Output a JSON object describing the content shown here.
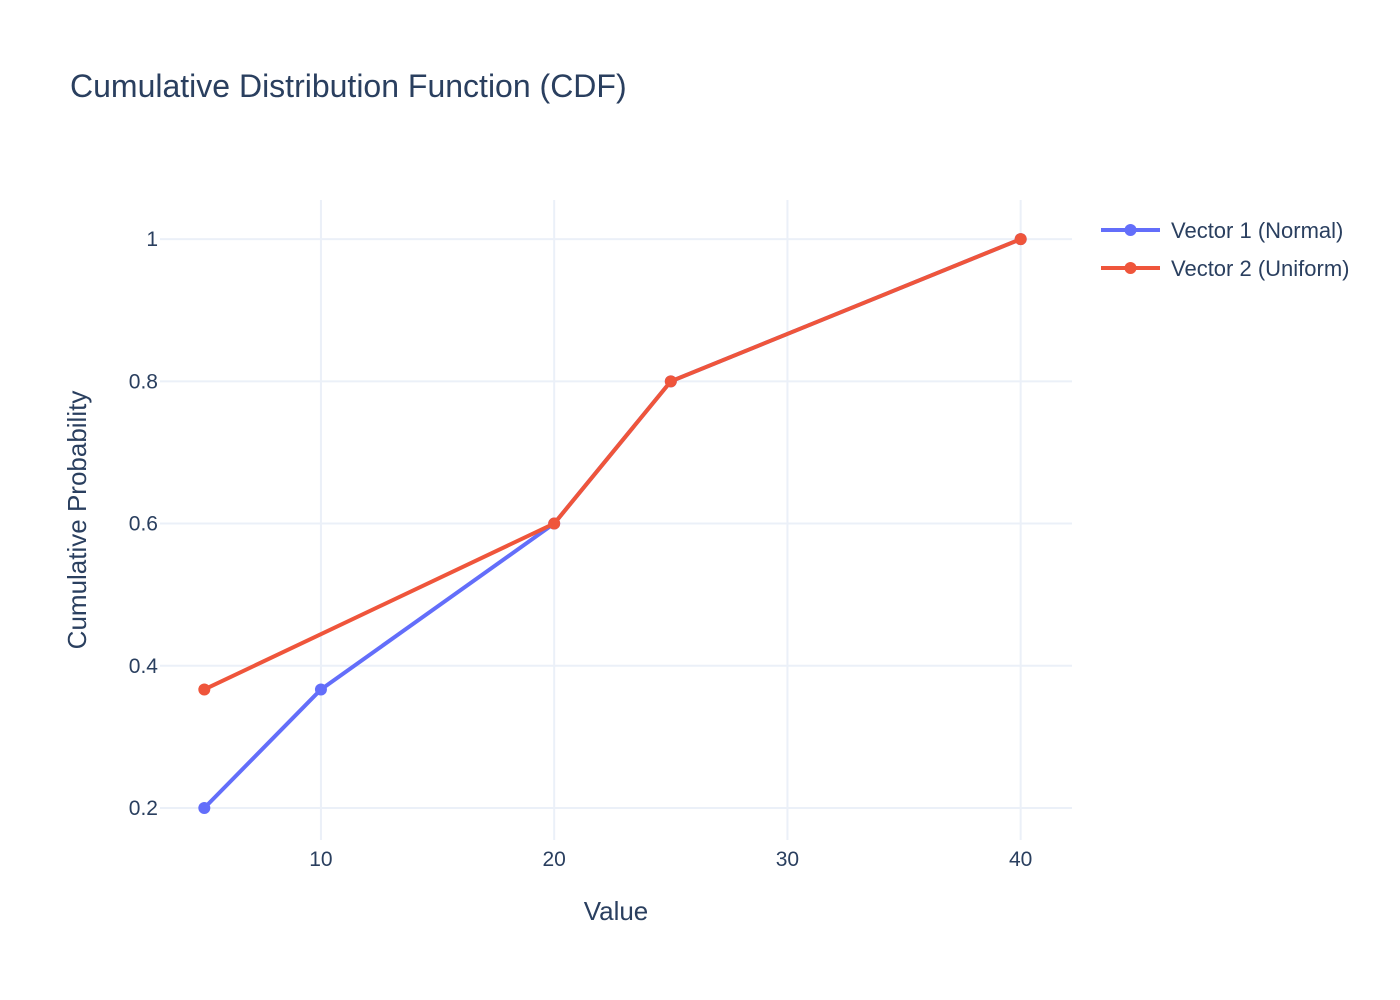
{
  "chart_data": {
    "type": "line",
    "title": "Cumulative Distribution Function (CDF)",
    "xlabel": "Value",
    "ylabel": "Cumulative Probability",
    "xlim": [
      3.1,
      42.2
    ],
    "ylim": [
      0.155,
      1.055
    ],
    "x_ticks": [
      10,
      20,
      30,
      40
    ],
    "x_tick_labels": [
      "10",
      "20",
      "30",
      "40"
    ],
    "y_ticks": [
      0.2,
      0.4,
      0.6,
      0.8,
      1
    ],
    "y_tick_labels": [
      "0.2",
      "0.4",
      "0.6",
      "0.8",
      "1"
    ],
    "grid": true,
    "legend_position": "top-right",
    "series": [
      {
        "name": "Vector 1 (Normal)",
        "color": "#636efa",
        "x": [
          5,
          10,
          20,
          25,
          40
        ],
        "y": [
          0.2,
          0.3667,
          0.6,
          0.8,
          1.0
        ]
      },
      {
        "name": "Vector 2 (Uniform)",
        "color": "#ef553b",
        "x": [
          5,
          20,
          25,
          40
        ],
        "y": [
          0.3667,
          0.6,
          0.8,
          1.0
        ]
      }
    ]
  }
}
